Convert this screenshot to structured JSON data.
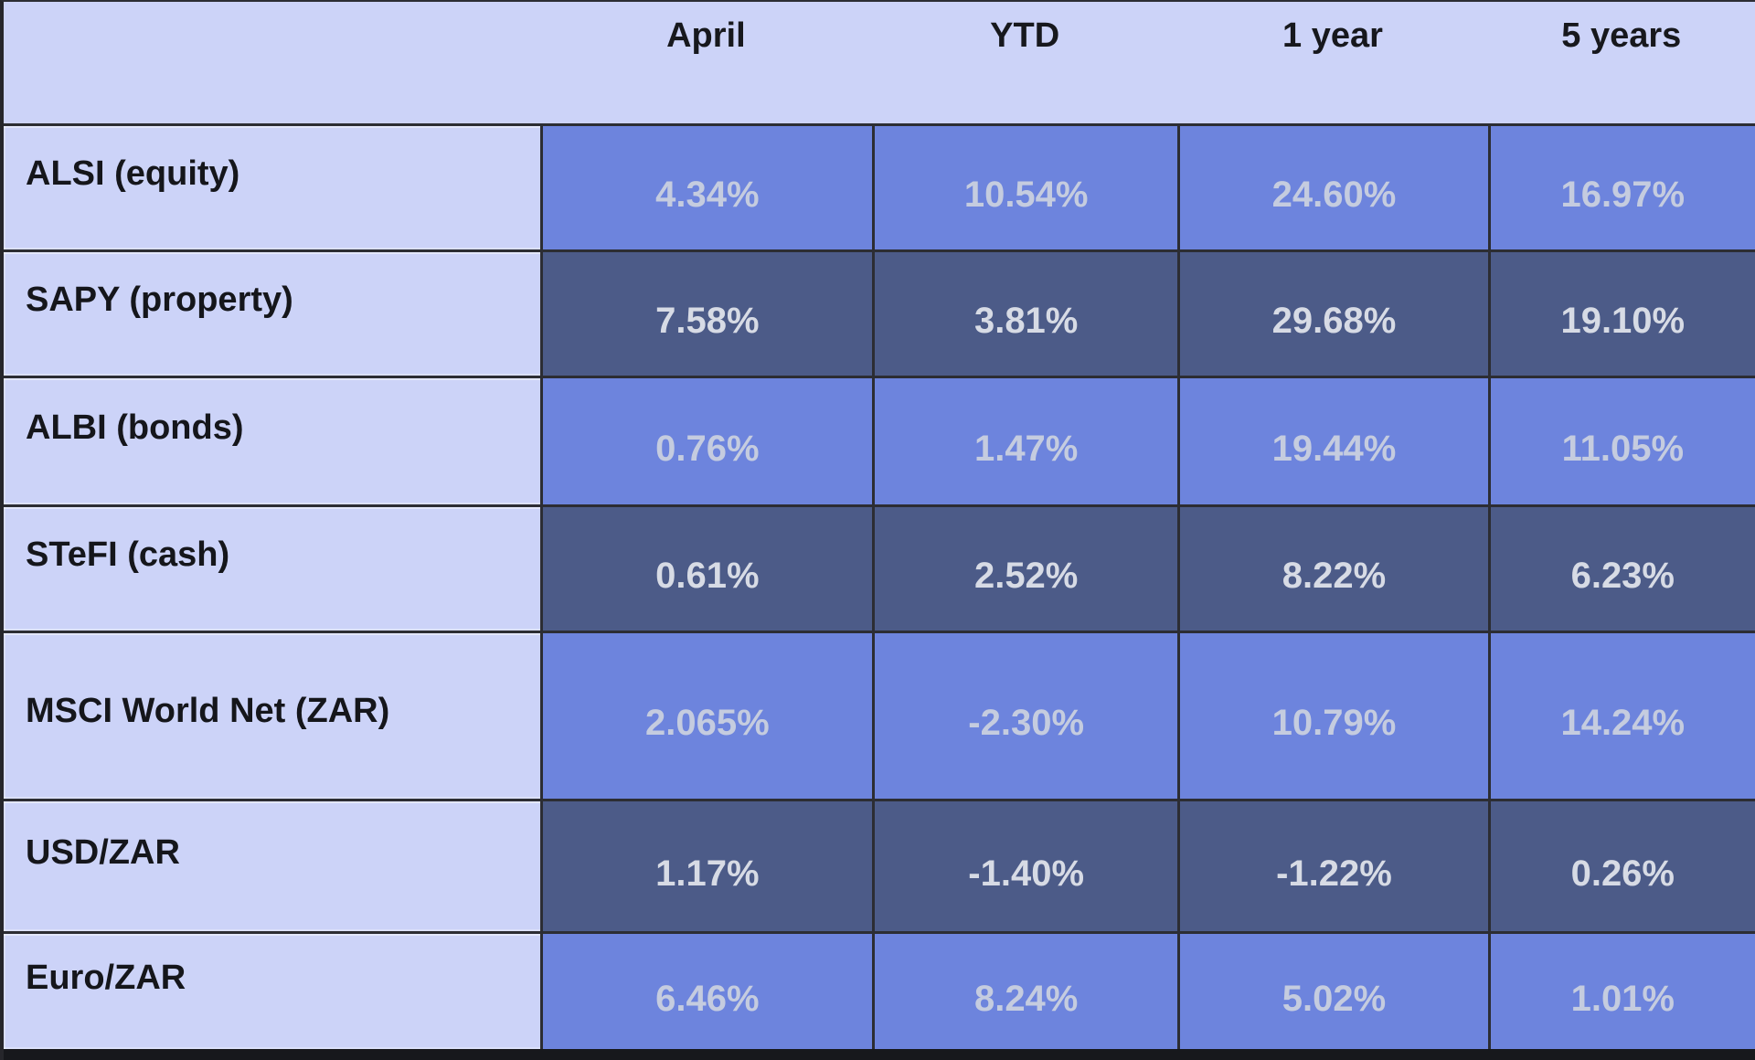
{
  "table": {
    "column_headers": [
      "April",
      "YTD",
      "1 year",
      "5 years"
    ],
    "rows": [
      {
        "label": "ALSI (equity)",
        "values": [
          "4.34%",
          "10.54%",
          "24.60%",
          "16.97%"
        ]
      },
      {
        "label": "SAPY (property)",
        "values": [
          "7.58%",
          "3.81%",
          "29.68%",
          "19.10%"
        ]
      },
      {
        "label": "ALBI (bonds)",
        "values": [
          "0.76%",
          "1.47%",
          "19.44%",
          "11.05%"
        ]
      },
      {
        "label": "STeFI (cash)",
        "values": [
          "0.61%",
          "2.52%",
          "8.22%",
          "6.23%"
        ]
      },
      {
        "label": "MSCI World Net (ZAR)",
        "values": [
          "2.065%",
          "-2.30%",
          "10.79%",
          "14.24%"
        ]
      },
      {
        "label": "USD/ZAR",
        "values": [
          "1.17%",
          "-1.40%",
          "-1.22%",
          "0.26%"
        ]
      },
      {
        "label": "Euro/ZAR",
        "values": [
          "6.46%",
          "8.24%",
          "5.02%",
          "1.01%"
        ]
      }
    ]
  },
  "colors": {
    "header_background": "#ccd3f8",
    "label_background": "#ccd3f8",
    "cell_medium_blue": "#6d84dd",
    "cell_dark_slate": "#4c5b88",
    "value_text_on_blue": "#c5ccdf",
    "value_text_on_dark": "#d7dbe5",
    "label_text": "#15161b",
    "grid_border": "#2c2d33",
    "bottom_bar": "#17181c"
  },
  "chart_data": {
    "type": "table",
    "columns": [
      "April",
      "YTD",
      "1 year",
      "5 years"
    ],
    "row_labels": [
      "ALSI (equity)",
      "SAPY (property)",
      "ALBI (bonds)",
      "STeFI (cash)",
      "MSCI World Net (ZAR)",
      "USD/ZAR",
      "Euro/ZAR"
    ],
    "values_percent": [
      [
        4.34,
        10.54,
        24.6,
        16.97
      ],
      [
        7.58,
        3.81,
        29.68,
        19.1
      ],
      [
        0.76,
        1.47,
        19.44,
        11.05
      ],
      [
        0.61,
        2.52,
        8.22,
        6.23
      ],
      [
        2.065,
        -2.3,
        10.79,
        14.24
      ],
      [
        1.17,
        -1.4,
        -1.22,
        0.26
      ],
      [
        6.46,
        8.24,
        5.02,
        1.01
      ]
    ],
    "units": "percent"
  }
}
